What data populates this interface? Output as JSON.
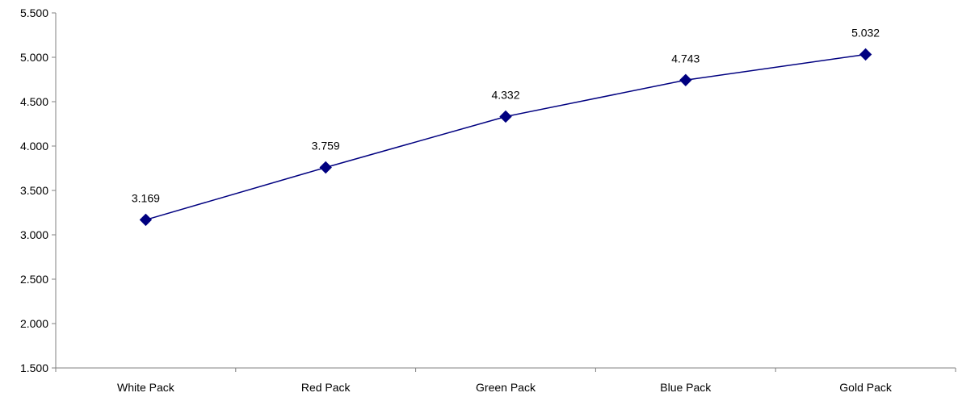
{
  "chart_data": {
    "type": "line",
    "title": "",
    "xlabel": "",
    "ylabel": "",
    "categories": [
      "White Pack",
      "Red Pack",
      "Green Pack",
      "Blue Pack",
      "Gold Pack"
    ],
    "series": [
      {
        "values": [
          3.169,
          3.759,
          4.332,
          4.743,
          5.032
        ],
        "data_labels": [
          "3.169",
          "3.759",
          "4.332",
          "4.743",
          "5.032"
        ],
        "color": "#000080",
        "marker": "diamond"
      }
    ],
    "ylim": [
      1.5,
      5.5
    ],
    "y_ticks": [
      1.5,
      2.0,
      2.5,
      3.0,
      3.5,
      4.0,
      4.5,
      5.0,
      5.5
    ],
    "y_tick_labels": [
      "1.500",
      "2.000",
      "2.500",
      "3.000",
      "3.500",
      "4.000",
      "4.500",
      "5.000",
      "5.500"
    ],
    "grid": false,
    "legend": "none"
  }
}
